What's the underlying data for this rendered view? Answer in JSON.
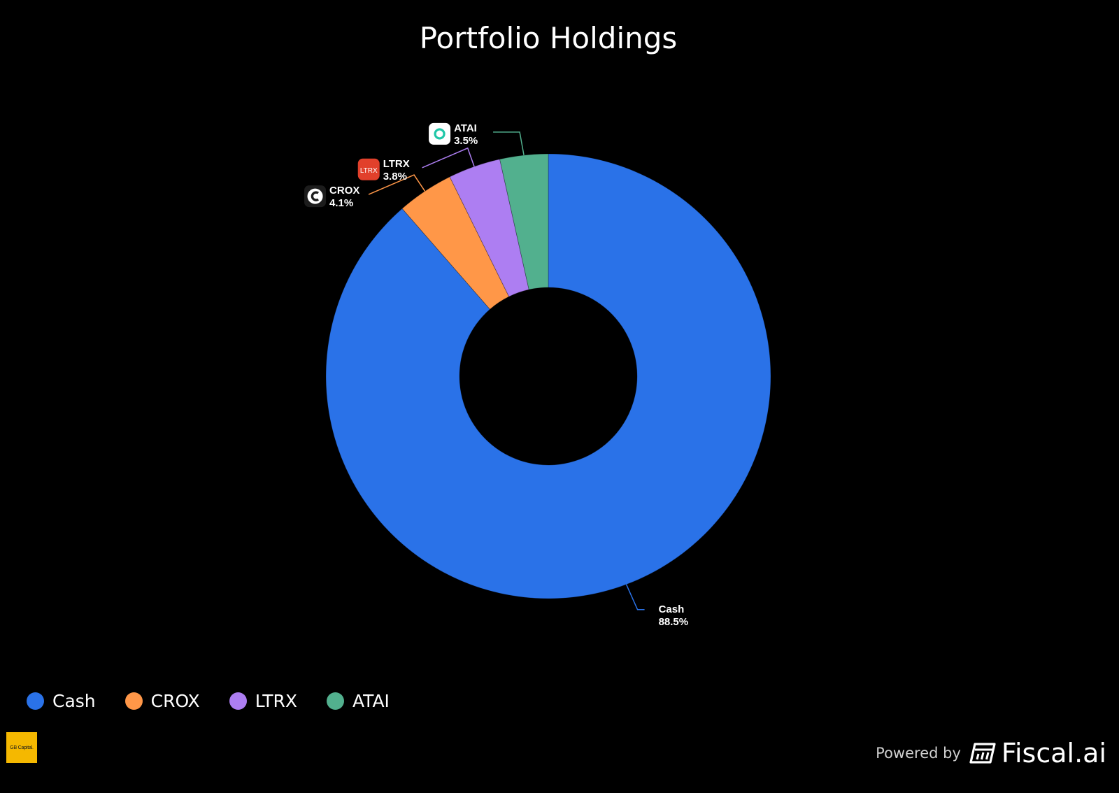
{
  "chart_data": {
    "type": "pie",
    "title": "Portfolio Holdings",
    "donut": true,
    "legend_position": "bottom-left",
    "slices": [
      {
        "label": "Cash",
        "value": 88.5,
        "pct_label": "88.5%",
        "color": "#2a72e8",
        "icon": ""
      },
      {
        "label": "CROX",
        "value": 4.1,
        "pct_label": "4.1%",
        "color": "#ff9748",
        "icon": "crox-logo-icon"
      },
      {
        "label": "LTRX",
        "value": 3.8,
        "pct_label": "3.8%",
        "color": "#ad7ef2",
        "icon": "ltrx-logo-icon"
      },
      {
        "label": "ATAI",
        "value": 3.5,
        "pct_label": "3.5%",
        "color": "#52b08e",
        "icon": "atai-logo-icon"
      }
    ]
  },
  "legend": {
    "items": [
      {
        "label": "Cash",
        "color": "#2a72e8"
      },
      {
        "label": "CROX",
        "color": "#ff9748"
      },
      {
        "label": "LTRX",
        "color": "#ad7ef2"
      },
      {
        "label": "ATAI",
        "color": "#52b08e"
      }
    ]
  },
  "branding": {
    "badge_text": "GB Capital.",
    "badge_color": "#f5b800",
    "powered_by": "Powered by",
    "provider": "Fiscal.ai",
    "ltrx_logo_text": "LTRX",
    "crox_logo_text": "C"
  }
}
